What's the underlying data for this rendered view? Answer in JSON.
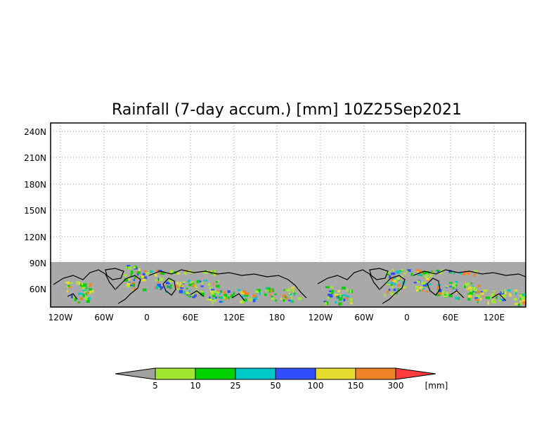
{
  "title": "Rainfall (7-day accum.) [mm] 10Z25Sep2021",
  "map": {
    "y_ticks": [
      "240N",
      "210N",
      "180N",
      "150N",
      "120N",
      "90N",
      "60N"
    ],
    "x_ticks": [
      "120W",
      "60W",
      "0",
      "60E",
      "120E",
      "180",
      "120W",
      "60W",
      "0",
      "60E",
      "120E"
    ],
    "land_color": "#a9a9a9",
    "grid": "dotted",
    "coastline_color": "#000000"
  },
  "colorbar": {
    "labels": [
      "5",
      "10",
      "25",
      "50",
      "100",
      "150",
      "300"
    ],
    "unit": "[mm]",
    "colors": [
      "#a0a0a0",
      "#a0e632",
      "#00d200",
      "#00c8c8",
      "#2f4fff",
      "#e6dc32",
      "#f08228",
      "#fa3c3c"
    ]
  }
}
